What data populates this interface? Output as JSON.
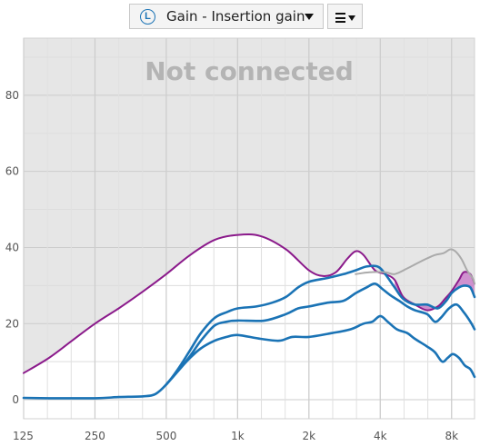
{
  "toolbar": {
    "ear_badge": "L",
    "view_select_label": "Gain - Insertion gain",
    "menu_icon": "hamburger-menu-icon",
    "dropdown_icon": "caret-down-icon"
  },
  "status": {
    "message": "Not connected"
  },
  "colors": {
    "target": "#8b1a8b",
    "measured": "#1a73b5",
    "reference": "#aaaaaa",
    "fill_area": "#c77ec7",
    "shade": "#e6e6e6",
    "grid": "#cccccc"
  },
  "chart_data": {
    "type": "line",
    "title": "",
    "xlabel": "",
    "ylabel": "",
    "x_scale": "log",
    "xlim": [
      125,
      10000
    ],
    "ylim": [
      -5,
      95
    ],
    "x_ticks": [
      {
        "value": 125,
        "label": "125"
      },
      {
        "value": 250,
        "label": "250"
      },
      {
        "value": 500,
        "label": "500"
      },
      {
        "value": 1000,
        "label": "1k"
      },
      {
        "value": 2000,
        "label": "2k"
      },
      {
        "value": 4000,
        "label": "4k"
      },
      {
        "value": 8000,
        "label": "8k"
      }
    ],
    "y_ticks": [
      0,
      20,
      40,
      60,
      80
    ],
    "grid": true,
    "series": [
      {
        "color": "#8b1a8b",
        "points": [
          [
            125,
            7
          ],
          [
            160,
            11
          ],
          [
            200,
            15.5
          ],
          [
            250,
            20
          ],
          [
            315,
            24
          ],
          [
            400,
            28.5
          ],
          [
            500,
            33
          ],
          [
            630,
            38
          ],
          [
            800,
            42
          ],
          [
            1000,
            43.3
          ],
          [
            1250,
            43
          ],
          [
            1600,
            39.5
          ],
          [
            2000,
            34
          ],
          [
            2300,
            32.5
          ],
          [
            2600,
            33.5
          ],
          [
            2900,
            37
          ],
          [
            3150,
            39
          ],
          [
            3400,
            38
          ],
          [
            3800,
            34
          ],
          [
            4200,
            33
          ],
          [
            4600,
            31.5
          ],
          [
            5000,
            27
          ],
          [
            5600,
            25
          ],
          [
            6300,
            23.5
          ],
          [
            7000,
            24.5
          ],
          [
            7500,
            26.5
          ],
          [
            8000,
            28.5
          ],
          [
            8600,
            31.5
          ],
          [
            9000,
            33.5
          ],
          [
            9600,
            33
          ],
          [
            10000,
            30.5
          ]
        ]
      },
      {
        "color": "#1a73b5",
        "points": [
          [
            125,
            0.5
          ],
          [
            160,
            0.4
          ],
          [
            250,
            0.4
          ],
          [
            315,
            0.7
          ],
          [
            400,
            0.9
          ],
          [
            450,
            1.5
          ],
          [
            500,
            4
          ],
          [
            560,
            8
          ],
          [
            630,
            13
          ],
          [
            700,
            17.5
          ],
          [
            800,
            21.5
          ],
          [
            900,
            23
          ],
          [
            1000,
            24
          ],
          [
            1200,
            24.5
          ],
          [
            1400,
            25.5
          ],
          [
            1600,
            27
          ],
          [
            1800,
            29.5
          ],
          [
            2000,
            31
          ],
          [
            2400,
            32
          ],
          [
            2800,
            33
          ],
          [
            3150,
            34
          ],
          [
            3500,
            35
          ],
          [
            3900,
            35
          ],
          [
            4200,
            33
          ],
          [
            4600,
            29.5
          ],
          [
            5000,
            26.5
          ],
          [
            5600,
            25
          ],
          [
            6300,
            25
          ],
          [
            7000,
            24
          ],
          [
            7600,
            26
          ],
          [
            8000,
            28
          ],
          [
            8600,
            29.5
          ],
          [
            9100,
            30
          ],
          [
            9600,
            29.5
          ],
          [
            10000,
            27
          ]
        ]
      },
      {
        "color": "#1a73b5",
        "points": [
          [
            500,
            4
          ],
          [
            560,
            7.5
          ],
          [
            630,
            11.5
          ],
          [
            700,
            15.5
          ],
          [
            800,
            19.5
          ],
          [
            900,
            20.5
          ],
          [
            1000,
            20.8
          ],
          [
            1300,
            20.8
          ],
          [
            1600,
            22.5
          ],
          [
            1800,
            24
          ],
          [
            2000,
            24.5
          ],
          [
            2400,
            25.5
          ],
          [
            2800,
            26
          ],
          [
            3150,
            28
          ],
          [
            3500,
            29.5
          ],
          [
            3800,
            30.5
          ],
          [
            4100,
            29
          ],
          [
            4400,
            27.5
          ],
          [
            4800,
            26
          ],
          [
            5200,
            24.5
          ],
          [
            5600,
            23.5
          ],
          [
            6300,
            22.5
          ],
          [
            6800,
            20.5
          ],
          [
            7200,
            21.5
          ],
          [
            7800,
            24
          ],
          [
            8400,
            25
          ],
          [
            9000,
            23
          ],
          [
            9600,
            20.5
          ],
          [
            10000,
            18.5
          ]
        ]
      },
      {
        "color": "#1a73b5",
        "points": [
          [
            500,
            4
          ],
          [
            560,
            7.5
          ],
          [
            630,
            11
          ],
          [
            700,
            13.5
          ],
          [
            800,
            15.5
          ],
          [
            900,
            16.5
          ],
          [
            1000,
            17
          ],
          [
            1250,
            16
          ],
          [
            1500,
            15.5
          ],
          [
            1700,
            16.5
          ],
          [
            2000,
            16.5
          ],
          [
            2500,
            17.5
          ],
          [
            3000,
            18.5
          ],
          [
            3400,
            20
          ],
          [
            3700,
            20.5
          ],
          [
            4000,
            22
          ],
          [
            4300,
            20.5
          ],
          [
            4700,
            18.5
          ],
          [
            5200,
            17.5
          ],
          [
            5600,
            16
          ],
          [
            6300,
            14
          ],
          [
            6800,
            12.5
          ],
          [
            7300,
            10
          ],
          [
            7700,
            11
          ],
          [
            8100,
            12
          ],
          [
            8600,
            11
          ],
          [
            9100,
            9
          ],
          [
            9600,
            8
          ],
          [
            10000,
            6
          ]
        ]
      },
      {
        "color": "#aaaaaa",
        "points": [
          [
            3150,
            33
          ],
          [
            3600,
            33.5
          ],
          [
            4200,
            33.5
          ],
          [
            4600,
            33
          ],
          [
            5200,
            34.5
          ],
          [
            6000,
            36.5
          ],
          [
            6800,
            38
          ],
          [
            7400,
            38.5
          ],
          [
            7900,
            39.5
          ],
          [
            8300,
            39
          ],
          [
            8800,
            37
          ],
          [
            9300,
            34
          ],
          [
            9800,
            32
          ],
          [
            10000,
            30.5
          ]
        ]
      }
    ]
  }
}
